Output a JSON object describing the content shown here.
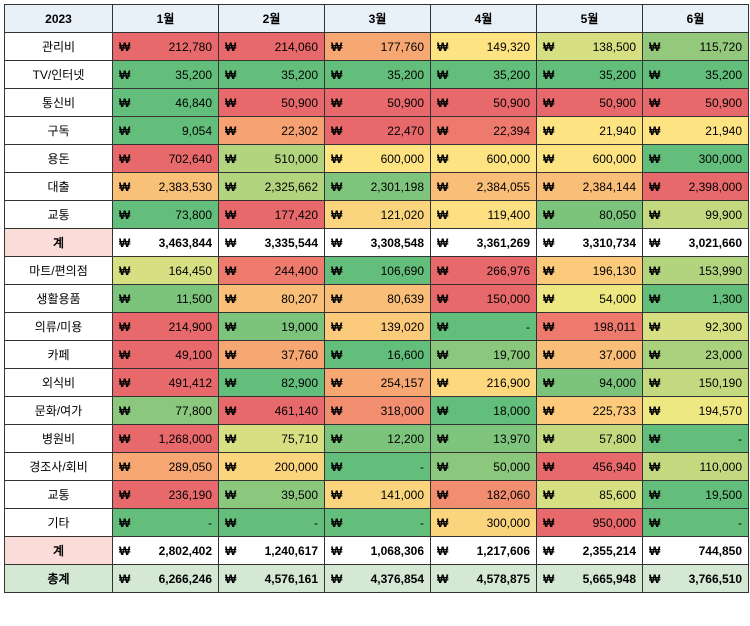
{
  "header": {
    "year": "2023",
    "months": [
      "1월",
      "2월",
      "3월",
      "4월",
      "5월",
      "6월"
    ]
  },
  "currency_symbol": "₩",
  "colors": {
    "header_bg": "#e8f0f8",
    "summary_label_bg": "#fadcd9",
    "total_bg": "#d4e8d4",
    "border": "#333333"
  },
  "rows": [
    {
      "label": "관리비",
      "cells": [
        {
          "v": "212,780",
          "bg": "#e8696b"
        },
        {
          "v": "214,060",
          "bg": "#e8696b"
        },
        {
          "v": "177,760",
          "bg": "#f6a772"
        },
        {
          "v": "149,320",
          "bg": "#fde382"
        },
        {
          "v": "138,500",
          "bg": "#d6e082"
        },
        {
          "v": "115,720",
          "bg": "#93c87d"
        }
      ]
    },
    {
      "label": "TV/인터넷",
      "cells": [
        {
          "v": "35,200",
          "bg": "#63be7b"
        },
        {
          "v": "35,200",
          "bg": "#63be7b"
        },
        {
          "v": "35,200",
          "bg": "#63be7b"
        },
        {
          "v": "35,200",
          "bg": "#63be7b"
        },
        {
          "v": "35,200",
          "bg": "#63be7b"
        },
        {
          "v": "35,200",
          "bg": "#63be7b"
        }
      ]
    },
    {
      "label": "통신비",
      "cells": [
        {
          "v": "46,840",
          "bg": "#63be7b"
        },
        {
          "v": "50,900",
          "bg": "#e8696b"
        },
        {
          "v": "50,900",
          "bg": "#e8696b"
        },
        {
          "v": "50,900",
          "bg": "#e8696b"
        },
        {
          "v": "50,900",
          "bg": "#e8696b"
        },
        {
          "v": "50,900",
          "bg": "#e8696b"
        }
      ]
    },
    {
      "label": "구독",
      "cells": [
        {
          "v": "9,054",
          "bg": "#63be7b"
        },
        {
          "v": "22,302",
          "bg": "#f5a171"
        },
        {
          "v": "22,470",
          "bg": "#e8696b"
        },
        {
          "v": "22,394",
          "bg": "#ed7a6d"
        },
        {
          "v": "21,940",
          "bg": "#fde382"
        },
        {
          "v": "21,940",
          "bg": "#fde382"
        }
      ]
    },
    {
      "label": "용돈",
      "cells": [
        {
          "v": "702,640",
          "bg": "#e8696b"
        },
        {
          "v": "510,000",
          "bg": "#b3d47e"
        },
        {
          "v": "600,000",
          "bg": "#fde382"
        },
        {
          "v": "600,000",
          "bg": "#fde382"
        },
        {
          "v": "600,000",
          "bg": "#fde382"
        },
        {
          "v": "300,000",
          "bg": "#63be7b"
        }
      ]
    },
    {
      "label": "대출",
      "cells": [
        {
          "v": "2,383,530",
          "bg": "#f9c078"
        },
        {
          "v": "2,325,662",
          "bg": "#b3d47e"
        },
        {
          "v": "2,301,198",
          "bg": "#7ec47c"
        },
        {
          "v": "2,384,055",
          "bg": "#f9be78"
        },
        {
          "v": "2,384,144",
          "bg": "#f9be78"
        },
        {
          "v": "2,398,000",
          "bg": "#e8696b"
        }
      ]
    },
    {
      "label": "교통",
      "cells": [
        {
          "v": "73,800",
          "bg": "#63be7b"
        },
        {
          "v": "177,420",
          "bg": "#e8696b"
        },
        {
          "v": "121,020",
          "bg": "#fbd47e"
        },
        {
          "v": "119,400",
          "bg": "#fde082"
        },
        {
          "v": "80,050",
          "bg": "#7cc37c"
        },
        {
          "v": "99,900",
          "bg": "#c3d980"
        }
      ]
    },
    {
      "label": "계",
      "summary": 1,
      "bold": true,
      "cells": [
        {
          "v": "3,463,844",
          "bg": "#ffffff"
        },
        {
          "v": "3,335,544",
          "bg": "#ffffff"
        },
        {
          "v": "3,308,548",
          "bg": "#ffffff"
        },
        {
          "v": "3,361,269",
          "bg": "#ffffff"
        },
        {
          "v": "3,310,734",
          "bg": "#ffffff"
        },
        {
          "v": "3,021,660",
          "bg": "#ffffff"
        }
      ]
    },
    {
      "label": "마트/편의점",
      "cells": [
        {
          "v": "164,450",
          "bg": "#d6e082"
        },
        {
          "v": "244,400",
          "bg": "#ed7a6d"
        },
        {
          "v": "106,690",
          "bg": "#63be7b"
        },
        {
          "v": "266,976",
          "bg": "#e8696b"
        },
        {
          "v": "196,130",
          "bg": "#fbca7b"
        },
        {
          "v": "153,990",
          "bg": "#b3d47e"
        }
      ]
    },
    {
      "label": "생활용품",
      "cells": [
        {
          "v": "11,500",
          "bg": "#7cc37c"
        },
        {
          "v": "80,207",
          "bg": "#f9be78"
        },
        {
          "v": "80,639",
          "bg": "#f9be78"
        },
        {
          "v": "150,000",
          "bg": "#e8696b"
        },
        {
          "v": "54,000",
          "bg": "#ede882"
        },
        {
          "v": "1,300",
          "bg": "#63be7b"
        }
      ]
    },
    {
      "label": "의류/미용",
      "cells": [
        {
          "v": "214,900",
          "bg": "#e8696b"
        },
        {
          "v": "19,000",
          "bg": "#7cc37c"
        },
        {
          "v": "139,020",
          "bg": "#fbca7b"
        },
        {
          "v": "-",
          "bg": "#63be7b"
        },
        {
          "v": "198,011",
          "bg": "#ed7a6d"
        },
        {
          "v": "92,300",
          "bg": "#d6e082"
        }
      ]
    },
    {
      "label": "카페",
      "cells": [
        {
          "v": "49,100",
          "bg": "#e8696b"
        },
        {
          "v": "37,760",
          "bg": "#f6a772"
        },
        {
          "v": "16,600",
          "bg": "#63be7b"
        },
        {
          "v": "19,700",
          "bg": "#8bc77d"
        },
        {
          "v": "37,000",
          "bg": "#f9be78"
        },
        {
          "v": "23,000",
          "bg": "#a9d17e"
        }
      ]
    },
    {
      "label": "외식비",
      "cells": [
        {
          "v": "491,412",
          "bg": "#e8696b"
        },
        {
          "v": "82,900",
          "bg": "#63be7b"
        },
        {
          "v": "254,157",
          "bg": "#f6a772"
        },
        {
          "v": "216,900",
          "bg": "#fdd87f"
        },
        {
          "v": "94,000",
          "bg": "#7cc37c"
        },
        {
          "v": "150,190",
          "bg": "#c3d980"
        }
      ]
    },
    {
      "label": "문화/여가",
      "cells": [
        {
          "v": "77,800",
          "bg": "#8bc77d"
        },
        {
          "v": "461,140",
          "bg": "#e8696b"
        },
        {
          "v": "318,000",
          "bg": "#f28e70"
        },
        {
          "v": "18,000",
          "bg": "#63be7b"
        },
        {
          "v": "225,733",
          "bg": "#fbca7b"
        },
        {
          "v": "194,570",
          "bg": "#ede882"
        }
      ]
    },
    {
      "label": "병원비",
      "cells": [
        {
          "v": "1,268,000",
          "bg": "#e8696b"
        },
        {
          "v": "75,710",
          "bg": "#d6e082"
        },
        {
          "v": "12,200",
          "bg": "#7cc37c"
        },
        {
          "v": "13,970",
          "bg": "#7ec47c"
        },
        {
          "v": "57,800",
          "bg": "#c3d980"
        },
        {
          "v": "-",
          "bg": "#63be7b"
        }
      ]
    },
    {
      "label": "경조사/회비",
      "cells": [
        {
          "v": "289,050",
          "bg": "#f6a772"
        },
        {
          "v": "200,000",
          "bg": "#fbd47e"
        },
        {
          "v": "-",
          "bg": "#63be7b"
        },
        {
          "v": "50,000",
          "bg": "#8bc77d"
        },
        {
          "v": "456,940",
          "bg": "#e8696b"
        },
        {
          "v": "110,000",
          "bg": "#c3d980"
        }
      ]
    },
    {
      "label": "교통",
      "cells": [
        {
          "v": "236,190",
          "bg": "#e8696b"
        },
        {
          "v": "39,500",
          "bg": "#8bc77d"
        },
        {
          "v": "141,000",
          "bg": "#fbd47e"
        },
        {
          "v": "182,060",
          "bg": "#f28e70"
        },
        {
          "v": "85,600",
          "bg": "#d6e082"
        },
        {
          "v": "19,500",
          "bg": "#63be7b"
        }
      ]
    },
    {
      "label": "기타",
      "cells": [
        {
          "v": "-",
          "bg": "#63be7b"
        },
        {
          "v": "-",
          "bg": "#63be7b"
        },
        {
          "v": "-",
          "bg": "#63be7b"
        },
        {
          "v": "300,000",
          "bg": "#fbd47e"
        },
        {
          "v": "950,000",
          "bg": "#e8696b"
        },
        {
          "v": "-",
          "bg": "#63be7b"
        }
      ]
    },
    {
      "label": "계",
      "summary": 2,
      "bold": true,
      "cells": [
        {
          "v": "2,802,402",
          "bg": "#ffffff"
        },
        {
          "v": "1,240,617",
          "bg": "#ffffff"
        },
        {
          "v": "1,068,306",
          "bg": "#ffffff"
        },
        {
          "v": "1,217,606",
          "bg": "#ffffff"
        },
        {
          "v": "2,355,214",
          "bg": "#ffffff"
        },
        {
          "v": "744,850",
          "bg": "#ffffff"
        }
      ]
    },
    {
      "label": "총계",
      "total": true,
      "bold": true,
      "cells": [
        {
          "v": "6,266,246",
          "bg": "#d4e8d4"
        },
        {
          "v": "4,576,161",
          "bg": "#d4e8d4"
        },
        {
          "v": "4,376,854",
          "bg": "#d4e8d4"
        },
        {
          "v": "4,578,875",
          "bg": "#d4e8d4"
        },
        {
          "v": "5,665,948",
          "bg": "#d4e8d4"
        },
        {
          "v": "3,766,510",
          "bg": "#d4e8d4"
        }
      ]
    }
  ]
}
